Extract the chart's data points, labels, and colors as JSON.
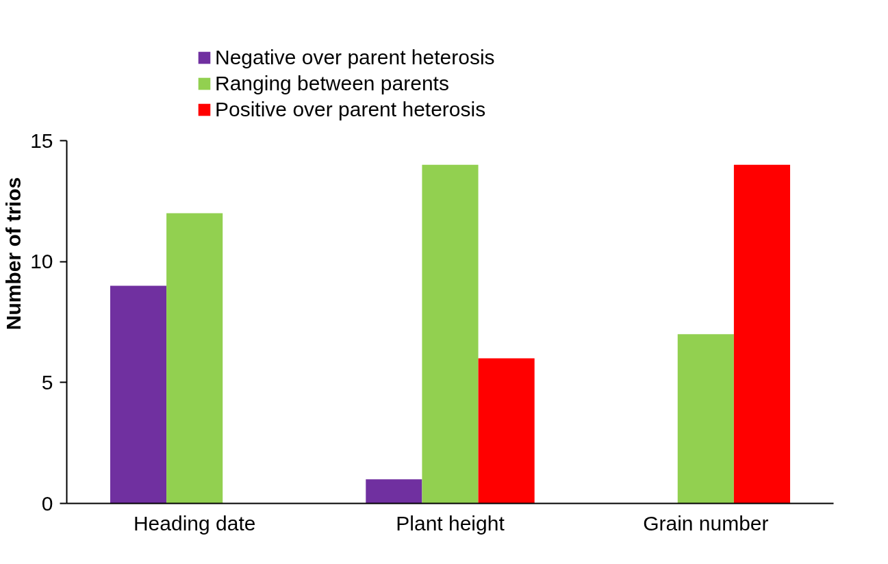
{
  "chart_data": {
    "type": "bar",
    "ylabel": "Number of trios",
    "categories": [
      "Heading date",
      "Plant height",
      "Grain number"
    ],
    "series": [
      {
        "name": "Negative over parent heterosis",
        "color": "#7030a0",
        "values": [
          9,
          1,
          0
        ]
      },
      {
        "name": "Ranging between parents",
        "color": "#92d050",
        "values": [
          12,
          14,
          7
        ]
      },
      {
        "name": "Positive over parent heterosis",
        "color": "#ff0000",
        "values": [
          0,
          6,
          14
        ]
      }
    ],
    "ylim": [
      0,
      15
    ],
    "yticks": [
      0,
      5,
      10,
      15
    ],
    "grid": false,
    "legend": "top"
  }
}
